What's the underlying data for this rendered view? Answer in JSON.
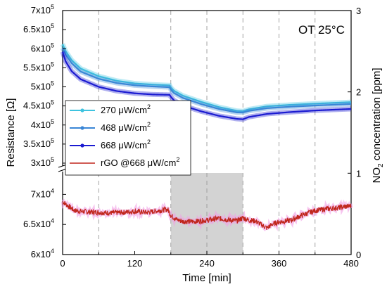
{
  "chart_data": {
    "type": "line",
    "annotation": "OT 25°C",
    "xlabel": "Time [min]",
    "ylabel_left": "Resistance [Ω]",
    "ylabel_right": {
      "main": "NO",
      "sub": "2",
      "rest": " concentration [ppm]"
    },
    "xlim": [
      0,
      480
    ],
    "x_ticks": [
      "0",
      "120",
      "240",
      "360",
      "480"
    ],
    "y_upper": {
      "range": [
        300000,
        700000
      ],
      "ticks": [
        {
          "value": 300000,
          "mant": "3x10",
          "exp": "5"
        },
        {
          "value": 350000,
          "mant": "3.5x10",
          "exp": "5"
        },
        {
          "value": 400000,
          "mant": "4x10",
          "exp": "5"
        },
        {
          "value": 450000,
          "mant": "4.5x10",
          "exp": "5"
        },
        {
          "value": 500000,
          "mant": "5x10",
          "exp": "5"
        },
        {
          "value": 550000,
          "mant": "5.5x10",
          "exp": "5"
        },
        {
          "value": 600000,
          "mant": "6x10",
          "exp": "5"
        },
        {
          "value": 650000,
          "mant": "6.5x10",
          "exp": "5"
        },
        {
          "value": 700000,
          "mant": "7x10",
          "exp": "5"
        }
      ]
    },
    "y_lower": {
      "range": [
        60000,
        72500
      ],
      "ticks": [
        {
          "value": 60000,
          "mant": "6x10",
          "exp": "4"
        },
        {
          "value": 65000,
          "mant": "6.5x10",
          "exp": "4"
        },
        {
          "value": 70000,
          "mant": "7x10",
          "exp": "4"
        }
      ]
    },
    "y_right": {
      "range": [
        0,
        3
      ],
      "ticks": [
        "0",
        "1",
        "2",
        "3"
      ]
    },
    "legend": [
      {
        "label": "270 μW/cm",
        "sup": "2",
        "color": "#3ec3df"
      },
      {
        "label": "468 μW/cm",
        "sup": "2",
        "color": "#3a86d6"
      },
      {
        "label": "668 μW/cm",
        "sup": "2",
        "color": "#1b1bd1"
      },
      {
        "label": "rGO @668 μW/cm",
        "sup": "2",
        "color": "#c0261c"
      }
    ],
    "shaded_region": {
      "x_start": 180,
      "x_end": 300
    },
    "vertical_dashed_lines_x": [
      60,
      180,
      240,
      300,
      360,
      420
    ],
    "series": [
      {
        "name": "270 μW/cm2",
        "color": "#3ec3df",
        "x": [
          0,
          5,
          15,
          30,
          60,
          90,
          120,
          150,
          178,
          180,
          185,
          200,
          230,
          260,
          290,
          300,
          310,
          340,
          380,
          420,
          480
        ],
        "y": [
          612000,
          593000,
          570000,
          548000,
          528000,
          516000,
          509000,
          506000,
          504000,
          498000,
          490000,
          477000,
          461000,
          447000,
          437000,
          436000,
          441000,
          449000,
          453000,
          456000,
          460000
        ]
      },
      {
        "name": "468 μW/cm2",
        "color": "#3a86d6",
        "x": [
          0,
          5,
          15,
          30,
          60,
          90,
          120,
          150,
          178,
          180,
          185,
          200,
          230,
          260,
          290,
          300,
          310,
          340,
          380,
          420,
          480
        ],
        "y": [
          602000,
          585000,
          562000,
          540000,
          521000,
          510000,
          504000,
          501000,
          499000,
          493000,
          484000,
          471000,
          455000,
          442000,
          433000,
          433000,
          437000,
          444000,
          448000,
          451000,
          455000
        ]
      },
      {
        "name": "668 μW/cm2",
        "color": "#1b1bd1",
        "x": [
          0,
          5,
          15,
          30,
          60,
          90,
          120,
          150,
          178,
          180,
          185,
          200,
          230,
          260,
          290,
          300,
          310,
          340,
          380,
          420,
          480
        ],
        "y": [
          592000,
          567000,
          541000,
          520000,
          500000,
          489000,
          483000,
          480000,
          479000,
          474000,
          465000,
          451000,
          436000,
          424000,
          416000,
          415000,
          421000,
          429000,
          434000,
          438000,
          442000
        ]
      },
      {
        "name": "rGO @668 μW/cm2",
        "color": "#c0261c",
        "x": [
          0,
          10,
          20,
          40,
          60,
          80,
          100,
          120,
          140,
          160,
          175,
          180,
          190,
          200,
          220,
          240,
          260,
          280,
          290,
          300,
          310,
          320,
          330,
          340,
          350,
          360,
          380,
          400,
          420,
          440,
          460,
          480
        ],
        "y": [
          68800,
          68000,
          67300,
          67100,
          67000,
          66900,
          67000,
          67200,
          67000,
          67300,
          67500,
          66500,
          65800,
          65500,
          65500,
          65700,
          66000,
          65700,
          65600,
          66100,
          65700,
          65600,
          65000,
          64400,
          65100,
          65400,
          65700,
          66600,
          67300,
          67600,
          67800,
          68100
        ]
      }
    ]
  }
}
